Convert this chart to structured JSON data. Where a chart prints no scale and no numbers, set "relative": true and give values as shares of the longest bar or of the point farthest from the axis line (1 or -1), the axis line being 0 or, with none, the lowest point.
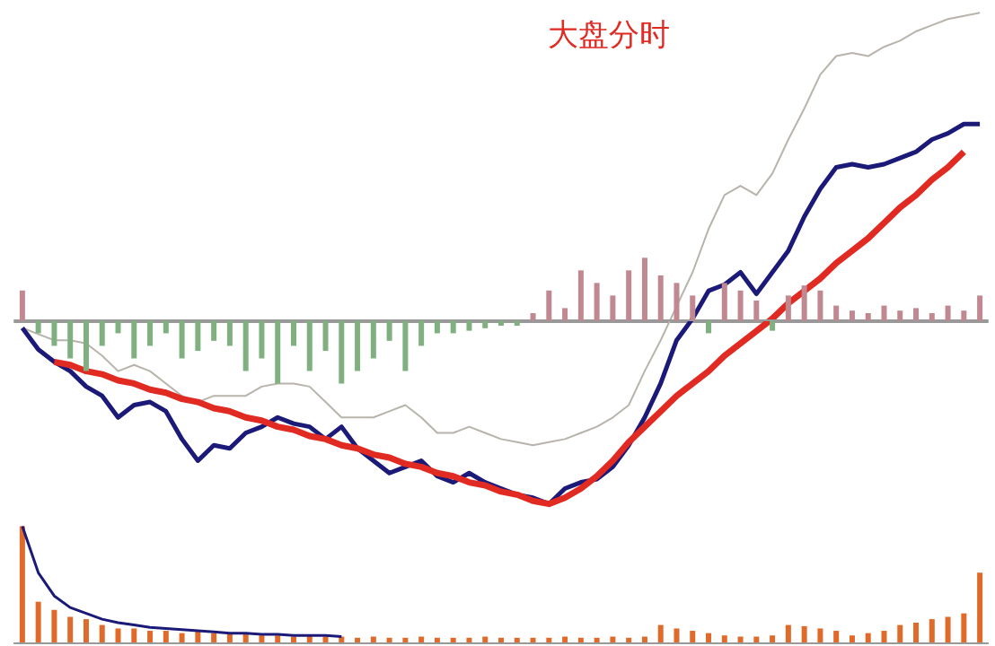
{
  "chart_data": [
    {
      "type": "line",
      "title": "大盘分时",
      "relative": true,
      "tick_labels": false,
      "marker": "none",
      "categories": [
        null,
        null,
        null,
        null,
        null,
        null,
        null,
        null,
        null,
        null,
        null,
        null,
        null,
        null,
        null,
        null,
        null,
        null,
        null,
        null,
        null,
        null,
        null,
        null,
        null,
        null,
        null,
        null,
        null,
        null,
        null,
        null,
        null,
        null,
        null,
        null,
        null,
        null,
        null,
        null,
        null,
        null,
        null,
        null,
        null,
        null,
        null,
        null,
        null,
        null,
        null,
        null,
        null,
        null,
        null,
        null,
        null,
        null,
        null,
        null,
        null
      ],
      "series": [
        {
          "color": "#b8b4ac",
          "values": [
            -0.02,
            -0.04,
            -0.06,
            -0.06,
            -0.07,
            -0.11,
            -0.16,
            -0.14,
            -0.16,
            -0.2,
            -0.24,
            -0.26,
            -0.24,
            -0.24,
            -0.24,
            -0.21,
            -0.2,
            -0.2,
            -0.21,
            -0.26,
            -0.31,
            -0.31,
            -0.31,
            -0.29,
            -0.27,
            -0.31,
            -0.36,
            -0.36,
            -0.34,
            -0.36,
            -0.38,
            -0.39,
            -0.4,
            -0.39,
            -0.38,
            -0.36,
            -0.34,
            -0.31,
            -0.27,
            -0.16,
            -0.06,
            0.05,
            0.16,
            0.3,
            0.41,
            0.44,
            0.41,
            0.48,
            0.59,
            0.69,
            0.8,
            0.86,
            0.87,
            0.86,
            0.89,
            0.91,
            0.94,
            0.96,
            0.98,
            0.99,
            1
          ]
        },
        {
          "color": "#1c1a78",
          "values": [
            -0.02,
            -0.09,
            -0.13,
            -0.16,
            -0.21,
            -0.24,
            -0.31,
            -0.27,
            -0.26,
            -0.29,
            -0.38,
            -0.45,
            -0.4,
            -0.41,
            -0.36,
            -0.34,
            -0.31,
            -0.33,
            -0.34,
            -0.38,
            -0.34,
            -0.41,
            -0.45,
            -0.49,
            -0.47,
            -0.45,
            -0.5,
            -0.52,
            -0.49,
            -0.52,
            -0.54,
            -0.56,
            -0.57,
            -0.59,
            -0.54,
            -0.52,
            -0.51,
            -0.47,
            -0.4,
            -0.31,
            -0.2,
            -0.06,
            0.01,
            0.1,
            0.12,
            0.16,
            0.09,
            0.16,
            0.23,
            0.34,
            0.43,
            0.5,
            0.51,
            0.5,
            0.51,
            0.53,
            0.55,
            0.59,
            0.61,
            0.64,
            0.64
          ]
        },
        {
          "color": "#e02a22",
          "values": [
            null,
            null,
            -0.13,
            -0.14,
            -0.16,
            -0.17,
            -0.19,
            -0.2,
            -0.22,
            -0.23,
            -0.25,
            -0.26,
            -0.28,
            -0.29,
            -0.31,
            -0.32,
            -0.34,
            -0.35,
            -0.37,
            -0.38,
            -0.4,
            -0.41,
            -0.43,
            -0.44,
            -0.46,
            -0.47,
            -0.49,
            -0.5,
            -0.52,
            -0.53,
            -0.55,
            -0.56,
            -0.58,
            -0.59,
            -0.57,
            -0.54,
            -0.5,
            -0.45,
            -0.39,
            -0.34,
            -0.29,
            -0.24,
            -0.2,
            -0.16,
            -0.11,
            -0.07,
            -0.03,
            0.01,
            0.06,
            0.1,
            0.14,
            0.19,
            0.23,
            0.27,
            0.32,
            0.37,
            0.41,
            0.46,
            0.5,
            0.55,
            null
          ]
        }
      ]
    },
    {
      "type": "bar",
      "relative": true,
      "tick_labels": false,
      "categories": [
        null,
        null,
        null,
        null,
        null,
        null,
        null,
        null,
        null,
        null,
        null,
        null,
        null,
        null,
        null,
        null,
        null,
        null,
        null,
        null,
        null,
        null,
        null,
        null,
        null,
        null,
        null,
        null,
        null,
        null,
        null,
        null,
        null,
        null,
        null,
        null,
        null,
        null,
        null,
        null,
        null,
        null,
        null,
        null,
        null,
        null,
        null,
        null,
        null,
        null,
        null,
        null,
        null,
        null,
        null,
        null,
        null,
        null,
        null,
        null,
        null
      ],
      "colors": [
        "#c08890",
        "#80b080",
        "#80b080",
        "#80b080",
        "#80b080",
        "#80b080",
        "#80b080",
        "#80b080",
        "#80b080",
        "#80b080",
        "#80b080",
        "#80b080",
        "#80b080",
        "#80b080",
        "#80b080",
        "#80b080",
        "#80b080",
        "#80b080",
        "#80b080",
        "#80b080",
        "#80b080",
        "#80b080",
        "#80b080",
        "#80b080",
        "#80b080",
        "#80b080",
        "#80b080",
        "#80b080",
        "#80b080",
        "#80b080",
        "#80b080",
        "#80b080",
        "#c08890",
        "#c08890",
        "#c08890",
        "#c08890",
        "#c08890",
        "#c08890",
        "#c08890",
        "#c08890",
        "#c08890",
        "#c08890",
        "#c08890",
        "#80b080",
        "#c08890",
        "#c08890",
        "#c08890",
        "#80b080",
        "#c08890",
        "#c08890",
        "#c08890",
        "#c08890",
        "#c08890",
        "#c08890",
        "#c08890",
        "#c08890",
        "#c08890",
        "#c08890",
        "#c08890",
        "#c08890",
        "#c08890"
      ],
      "values": [
        0.48,
        -0.2,
        -0.4,
        -0.6,
        -0.8,
        -0.4,
        -0.2,
        -0.6,
        -0.4,
        -0.2,
        -0.6,
        -0.48,
        -0.32,
        -0.4,
        -0.8,
        -0.6,
        -1,
        -0.4,
        -0.8,
        -0.48,
        -1,
        -0.8,
        -0.6,
        -0.32,
        -0.8,
        -0.4,
        -0.2,
        -0.2,
        -0.16,
        -0.12,
        -0.08,
        -0.08,
        0.12,
        0.48,
        0.2,
        0.8,
        0.6,
        0.4,
        0.8,
        1,
        0.72,
        0.6,
        0.4,
        -0.2,
        0.6,
        0.48,
        0.32,
        -0.16,
        0.4,
        0.56,
        0.48,
        0.24,
        0.16,
        0.12,
        0.24,
        0.16,
        0.2,
        0.12,
        0.24,
        0.16,
        0.4
      ]
    },
    {
      "type": "bar",
      "relative": true,
      "tick_labels": false,
      "categories": [
        null,
        null,
        null,
        null,
        null,
        null,
        null,
        null,
        null,
        null,
        null,
        null,
        null,
        null,
        null,
        null,
        null,
        null,
        null,
        null,
        null,
        null,
        null,
        null,
        null,
        null,
        null,
        null,
        null,
        null,
        null,
        null,
        null,
        null,
        null,
        null,
        null,
        null,
        null,
        null,
        null,
        null,
        null,
        null,
        null,
        null,
        null,
        null,
        null,
        null,
        null,
        null,
        null,
        null,
        null,
        null,
        null,
        null,
        null,
        null,
        null
      ],
      "color": "#e06a2a",
      "values": [
        1,
        0.35,
        0.28,
        0.22,
        0.2,
        0.15,
        0.12,
        0.12,
        0.1,
        0.1,
        0.08,
        0.1,
        0.08,
        0.08,
        0.07,
        0.06,
        0.06,
        0.05,
        0.06,
        0.05,
        0.05,
        0.04,
        0.05,
        0.04,
        0.04,
        0.05,
        0.04,
        0.04,
        0.04,
        0.05,
        0.04,
        0.04,
        0.04,
        0.04,
        0.05,
        0.04,
        0.04,
        0.05,
        0.04,
        0.05,
        0.15,
        0.12,
        0.1,
        0.08,
        0.06,
        0.05,
        0.05,
        0.06,
        0.15,
        0.14,
        0.12,
        0.1,
        0.06,
        0.08,
        0.1,
        0.15,
        0.17,
        0.2,
        0.22,
        0.25,
        0.6
      ]
    },
    {
      "type": "line",
      "relative": true,
      "tick_labels": false,
      "marker": "none",
      "categories": [
        null,
        null,
        null,
        null,
        null,
        null,
        null,
        null,
        null,
        null,
        null,
        null,
        null,
        null,
        null,
        null,
        null,
        null,
        null,
        null,
        null,
        null,
        null,
        null,
        null,
        null,
        null,
        null,
        null,
        null,
        null,
        null,
        null,
        null,
        null,
        null,
        null,
        null,
        null,
        null,
        null,
        null,
        null,
        null,
        null,
        null,
        null,
        null,
        null,
        null,
        null,
        null,
        null,
        null,
        null,
        null,
        null,
        null,
        null,
        null,
        null
      ],
      "color": "#1c1a78",
      "values": [
        1,
        0.6,
        0.4,
        0.3,
        0.25,
        0.2,
        0.17,
        0.15,
        0.13,
        0.12,
        0.11,
        0.1,
        0.09,
        0.08,
        0.08,
        0.07,
        0.07,
        0.06,
        0.06,
        0.06,
        0.05,
        null,
        null,
        null,
        null,
        null,
        null,
        null,
        null,
        null,
        null,
        null,
        null,
        null,
        null,
        null,
        null,
        null,
        null,
        null,
        null,
        null,
        null,
        null,
        null,
        null,
        null,
        null,
        null,
        null,
        null,
        null,
        null,
        null,
        null,
        null,
        null,
        null,
        null,
        null,
        null
      ]
    }
  ]
}
